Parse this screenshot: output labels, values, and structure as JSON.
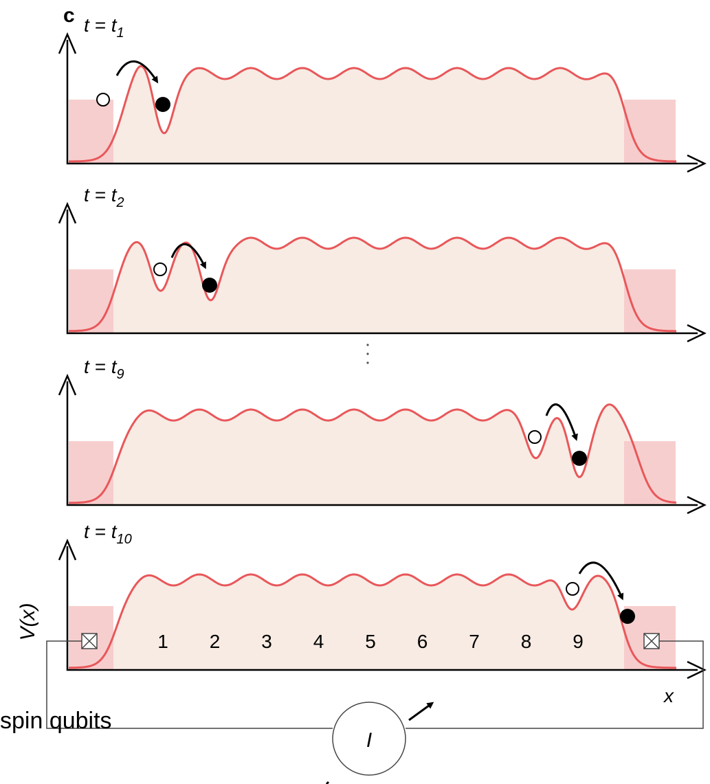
{
  "panel_label": "c",
  "panels": [
    {
      "time": "t = t",
      "subscript": "1"
    },
    {
      "time": "t = t",
      "subscript": "2"
    },
    {
      "time": "t = t",
      "subscript": "9"
    },
    {
      "time": "t = t",
      "subscript": "10"
    }
  ],
  "y_axis_label": "V(x)",
  "x_axis_label": "x",
  "dot_numbers": [
    "1",
    "2",
    "3",
    "4",
    "5",
    "6",
    "7",
    "8",
    "9"
  ],
  "current_label": "I",
  "caption_fragment": "spin qubits"
}
